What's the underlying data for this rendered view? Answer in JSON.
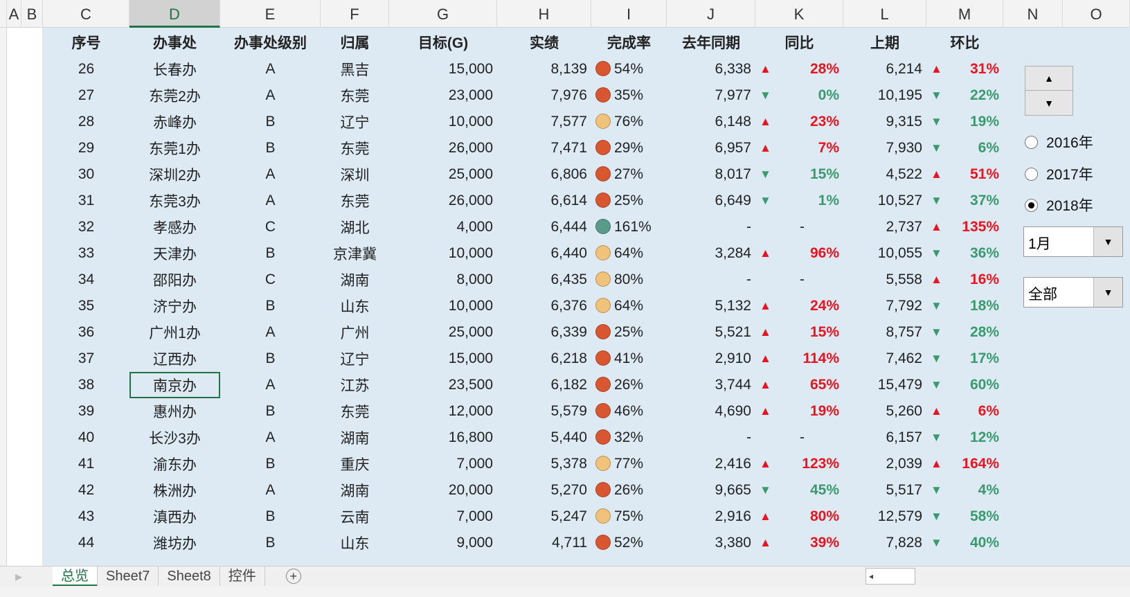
{
  "columns": [
    "A",
    "B",
    "C",
    "D",
    "E",
    "F",
    "G",
    "H",
    "I",
    "J",
    "K",
    "L",
    "M",
    "N",
    "O"
  ],
  "header": [
    "序号",
    "办事处",
    "办事处级别",
    "归属",
    "目标(G)",
    "实绩",
    "完成率",
    "去年同期",
    "同比",
    "上期",
    "环比"
  ],
  "colors": {
    "red": "#e8141f",
    "green": "#3a9a6e",
    "low": "#d95730",
    "mid": "#f0c27a",
    "high": "#5a9a8a",
    "background": "#ddeaf3"
  },
  "rows": [
    [
      "26",
      "长春办",
      "A",
      "黑吉",
      "15,000",
      "8,139",
      "low",
      "54%",
      "6,338",
      "up",
      "28%",
      "6,214",
      "up",
      "31%"
    ],
    [
      "27",
      "东莞2办",
      "A",
      "东莞",
      "23,000",
      "7,976",
      "low",
      "35%",
      "7,977",
      "down",
      "0%",
      "10,195",
      "down",
      "22%"
    ],
    [
      "28",
      "赤峰办",
      "B",
      "辽宁",
      "10,000",
      "7,577",
      "mid",
      "76%",
      "6,148",
      "up",
      "23%",
      "9,315",
      "down",
      "19%"
    ],
    [
      "29",
      "东莞1办",
      "B",
      "东莞",
      "26,000",
      "7,471",
      "low",
      "29%",
      "6,957",
      "up",
      "7%",
      "7,930",
      "down",
      "6%"
    ],
    [
      "30",
      "深圳2办",
      "A",
      "深圳",
      "25,000",
      "6,806",
      "low",
      "27%",
      "8,017",
      "down",
      "15%",
      "4,522",
      "up",
      "51%"
    ],
    [
      "31",
      "东莞3办",
      "A",
      "东莞",
      "26,000",
      "6,614",
      "low",
      "25%",
      "6,649",
      "down",
      "1%",
      "10,527",
      "down",
      "37%"
    ],
    [
      "32",
      "孝感办",
      "C",
      "湖北",
      "4,000",
      "6,444",
      "high",
      "161%",
      "-",
      "",
      "-",
      "2,737",
      "up",
      "135%"
    ],
    [
      "33",
      "天津办",
      "B",
      "京津冀",
      "10,000",
      "6,440",
      "mid",
      "64%",
      "3,284",
      "up",
      "96%",
      "10,055",
      "down",
      "36%"
    ],
    [
      "34",
      "邵阳办",
      "C",
      "湖南",
      "8,000",
      "6,435",
      "mid",
      "80%",
      "-",
      "",
      "-",
      "5,558",
      "up",
      "16%"
    ],
    [
      "35",
      "济宁办",
      "B",
      "山东",
      "10,000",
      "6,376",
      "mid",
      "64%",
      "5,132",
      "up",
      "24%",
      "7,792",
      "down",
      "18%"
    ],
    [
      "36",
      "广州1办",
      "A",
      "广州",
      "25,000",
      "6,339",
      "low",
      "25%",
      "5,521",
      "up",
      "15%",
      "8,757",
      "down",
      "28%"
    ],
    [
      "37",
      "辽西办",
      "B",
      "辽宁",
      "15,000",
      "6,218",
      "low",
      "41%",
      "2,910",
      "up",
      "114%",
      "7,462",
      "down",
      "17%"
    ],
    [
      "38",
      "南京办",
      "A",
      "江苏",
      "23,500",
      "6,182",
      "low",
      "26%",
      "3,744",
      "up",
      "65%",
      "15,479",
      "down",
      "60%"
    ],
    [
      "39",
      "惠州办",
      "B",
      "东莞",
      "12,000",
      "5,579",
      "low",
      "46%",
      "4,690",
      "up",
      "19%",
      "5,260",
      "up",
      "6%"
    ],
    [
      "40",
      "长沙3办",
      "A",
      "湖南",
      "16,800",
      "5,440",
      "low",
      "32%",
      "-",
      "",
      "-",
      "6,157",
      "down",
      "12%"
    ],
    [
      "41",
      "渝东办",
      "B",
      "重庆",
      "7,000",
      "5,378",
      "mid",
      "77%",
      "2,416",
      "up",
      "123%",
      "2,039",
      "up",
      "164%"
    ],
    [
      "42",
      "株洲办",
      "A",
      "湖南",
      "20,000",
      "5,270",
      "low",
      "26%",
      "9,665",
      "down",
      "45%",
      "5,517",
      "down",
      "4%"
    ],
    [
      "43",
      "滇西办",
      "B",
      "云南",
      "7,000",
      "5,247",
      "mid",
      "75%",
      "2,916",
      "up",
      "80%",
      "12,579",
      "down",
      "58%"
    ],
    [
      "44",
      "潍坊办",
      "B",
      "山东",
      "9,000",
      "4,711",
      "low",
      "52%",
      "3,380",
      "up",
      "39%",
      "7,828",
      "down",
      "40%"
    ]
  ],
  "selected_row": "38",
  "controls": {
    "years": [
      "2016年",
      "2017年",
      "2018年"
    ],
    "selected_year": "2018年",
    "month": "1月",
    "filter": "全部"
  },
  "tabs": [
    "总览",
    "Sheet7",
    "Sheet8",
    "控件"
  ],
  "active_tab": "总览"
}
